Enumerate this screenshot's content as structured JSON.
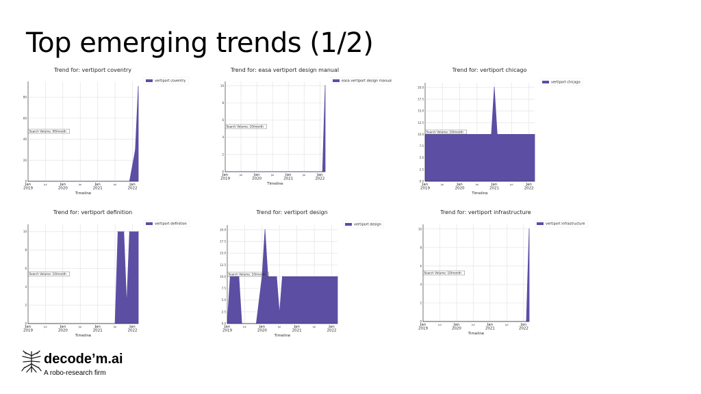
{
  "slide": {
    "title": "Top emerging trends (1/2)"
  },
  "brand": {
    "name": "decode’m.ai",
    "tagline": "A robo-research firm",
    "logo_icon": "tree-root-icon"
  },
  "colors": {
    "series": "#5b4ea3",
    "grid": "#e3e3e3",
    "axis": "#222222"
  },
  "chart_data": [
    {
      "type": "area",
      "title": "Trend for: vertiport coventry",
      "legend": "vertiport coventry",
      "legend_position": "top-right",
      "xlabel": "Timeline",
      "annotation": "Search Volume: 90/month",
      "x_start": "2019-01",
      "x_end": "2022-03",
      "x_ticks": [
        {
          "at": "2019-01",
          "label": [
            "Jan",
            "2019"
          ]
        },
        {
          "at": "2019-07",
          "label": [
            "Jul"
          ]
        },
        {
          "at": "2020-01",
          "label": [
            "Jan",
            "2020"
          ]
        },
        {
          "at": "2020-07",
          "label": [
            "Jul"
          ]
        },
        {
          "at": "2021-01",
          "label": [
            "Jan",
            "2021"
          ]
        },
        {
          "at": "2021-07",
          "label": [
            "Jul"
          ]
        },
        {
          "at": "2022-01",
          "label": [
            "Jan",
            "2022"
          ]
        }
      ],
      "y_ticks": [
        0,
        20,
        40,
        60,
        80
      ],
      "ylim": [
        0,
        95
      ],
      "grid": true,
      "points": [
        {
          "x": "2019-01",
          "y": 0
        },
        {
          "x": "2021-12",
          "y": 0
        },
        {
          "x": "2022-02",
          "y": 30
        },
        {
          "x": "2022-03",
          "y": 90
        }
      ]
    },
    {
      "type": "area",
      "title": "Trend for: easa vertiport design manual",
      "legend": "easa vertiport design manual",
      "legend_position": "top-right",
      "xlabel": "Timeline",
      "annotation": "Search Volume: 10/month",
      "x_start": "2019-01",
      "x_end": "2022-03",
      "x_ticks": [
        {
          "at": "2019-01",
          "label": [
            "Jan",
            "2019"
          ]
        },
        {
          "at": "2019-07",
          "label": [
            "Jul"
          ]
        },
        {
          "at": "2020-01",
          "label": [
            "Jan",
            "2020"
          ]
        },
        {
          "at": "2020-07",
          "label": [
            "Jul"
          ]
        },
        {
          "at": "2021-01",
          "label": [
            "Jan",
            "2021"
          ]
        },
        {
          "at": "2021-07",
          "label": [
            "Jul"
          ]
        },
        {
          "at": "2022-01",
          "label": [
            "Jan",
            "2022"
          ]
        }
      ],
      "y_ticks": [
        0,
        2,
        4,
        6,
        8,
        10
      ],
      "ylim": [
        0,
        10.5
      ],
      "grid": true,
      "points": [
        {
          "x": "2019-01",
          "y": 0
        },
        {
          "x": "2022-02",
          "y": 0
        },
        {
          "x": "2022-03",
          "y": 10
        }
      ]
    },
    {
      "type": "area",
      "title": "Trend for: vertiport chicago",
      "legend": "vertiport chicago",
      "legend_position": "top-right",
      "xlabel": "Timeline",
      "annotation": "Search Volume: 10/month",
      "x_start": "2019-01",
      "x_end": "2022-03",
      "x_ticks": [
        {
          "at": "2019-01",
          "label": [
            "Jan",
            "2019"
          ]
        },
        {
          "at": "2019-07",
          "label": [
            "Jul"
          ]
        },
        {
          "at": "2020-01",
          "label": [
            "Jan",
            "2020"
          ]
        },
        {
          "at": "2020-07",
          "label": [
            "Jul"
          ]
        },
        {
          "at": "2021-01",
          "label": [
            "Jan",
            "2021"
          ]
        },
        {
          "at": "2021-07",
          "label": [
            "Jul"
          ]
        },
        {
          "at": "2022-01",
          "label": [
            "Jan",
            "2022"
          ]
        }
      ],
      "y_ticks": [
        "0.0",
        "2.5",
        "5.0",
        "7.5",
        "10.0",
        "12.5",
        "15.0",
        "17.5",
        "20.0"
      ],
      "ylim": [
        0,
        21
      ],
      "grid": true,
      "points": [
        {
          "x": "2019-01",
          "y": 10
        },
        {
          "x": "2020-12",
          "y": 10
        },
        {
          "x": "2021-01",
          "y": 20
        },
        {
          "x": "2021-02",
          "y": 10
        },
        {
          "x": "2022-03",
          "y": 10
        }
      ]
    },
    {
      "type": "area",
      "title": "Trend for: vertiport definition",
      "legend": "vertiport definition",
      "legend_position": "top-right",
      "xlabel": "Timeline",
      "annotation": "Search Volume: 10/month",
      "x_start": "2019-01",
      "x_end": "2022-03",
      "x_ticks": [
        {
          "at": "2019-01",
          "label": [
            "Jan",
            "2019"
          ]
        },
        {
          "at": "2019-07",
          "label": [
            "Jul"
          ]
        },
        {
          "at": "2020-01",
          "label": [
            "Jan",
            "2020"
          ]
        },
        {
          "at": "2020-07",
          "label": [
            "Jul"
          ]
        },
        {
          "at": "2021-01",
          "label": [
            "Jan",
            "2021"
          ]
        },
        {
          "at": "2021-07",
          "label": [
            "Jul"
          ]
        },
        {
          "at": "2022-01",
          "label": [
            "Jan",
            "2022"
          ]
        }
      ],
      "y_ticks": [
        0,
        2,
        4,
        6,
        8,
        10
      ],
      "ylim": [
        0,
        10.8
      ],
      "grid": true,
      "points": [
        {
          "x": "2019-01",
          "y": 0
        },
        {
          "x": "2021-07",
          "y": 0
        },
        {
          "x": "2021-08",
          "y": 10
        },
        {
          "x": "2021-10",
          "y": 10
        },
        {
          "x": "2021-11",
          "y": 2
        },
        {
          "x": "2021-12",
          "y": 10
        },
        {
          "x": "2022-03",
          "y": 10
        }
      ]
    },
    {
      "type": "area",
      "title": "Trend for: vertiport design",
      "legend": "vertiport design",
      "legend_position": "top-right",
      "xlabel": "Timeline",
      "annotation": "Search Volume: 10/month",
      "x_start": "2019-01",
      "x_end": "2022-03",
      "x_ticks": [
        {
          "at": "2019-01",
          "label": [
            "Jan",
            "2019"
          ]
        },
        {
          "at": "2019-07",
          "label": [
            "Jul"
          ]
        },
        {
          "at": "2020-01",
          "label": [
            "Jan",
            "2020"
          ]
        },
        {
          "at": "2020-07",
          "label": [
            "Jul"
          ]
        },
        {
          "at": "2021-01",
          "label": [
            "Jan",
            "2021"
          ]
        },
        {
          "at": "2021-07",
          "label": [
            "Jul"
          ]
        },
        {
          "at": "2022-01",
          "label": [
            "Jan",
            "2022"
          ]
        }
      ],
      "y_ticks": [
        "0.0",
        "2.5",
        "5.0",
        "7.5",
        "10.0",
        "12.5",
        "15.0",
        "17.5",
        "20.0"
      ],
      "ylim": [
        0,
        21
      ],
      "grid": true,
      "points": [
        {
          "x": "2019-01",
          "y": 0
        },
        {
          "x": "2019-02",
          "y": 10
        },
        {
          "x": "2019-05",
          "y": 10
        },
        {
          "x": "2019-06",
          "y": 0
        },
        {
          "x": "2019-11",
          "y": 0
        },
        {
          "x": "2020-01",
          "y": 10
        },
        {
          "x": "2020-02",
          "y": 20
        },
        {
          "x": "2020-03",
          "y": 10
        },
        {
          "x": "2020-06",
          "y": 10
        },
        {
          "x": "2020-07",
          "y": 2
        },
        {
          "x": "2020-08",
          "y": 10
        },
        {
          "x": "2022-03",
          "y": 10
        }
      ]
    },
    {
      "type": "area",
      "title": "Trend for: vertiport infrastructure",
      "legend": "vertiport infrastructure",
      "legend_position": "top-right",
      "xlabel": "Timeline",
      "annotation": "Search Volume: 10/month",
      "x_start": "2019-01",
      "x_end": "2022-03",
      "x_ticks": [
        {
          "at": "2019-01",
          "label": [
            "Jan",
            "2019"
          ]
        },
        {
          "at": "2019-07",
          "label": [
            "Jul"
          ]
        },
        {
          "at": "2020-01",
          "label": [
            "Jan",
            "2020"
          ]
        },
        {
          "at": "2020-07",
          "label": [
            "Jul"
          ]
        },
        {
          "at": "2021-01",
          "label": [
            "Jan",
            "2021"
          ]
        },
        {
          "at": "2021-07",
          "label": [
            "Jul"
          ]
        },
        {
          "at": "2022-01",
          "label": [
            "Jan",
            "2022"
          ]
        }
      ],
      "y_ticks": [
        0,
        2,
        4,
        6,
        8,
        10
      ],
      "ylim": [
        0,
        10.5
      ],
      "grid": true,
      "points": [
        {
          "x": "2019-01",
          "y": 0
        },
        {
          "x": "2022-02",
          "y": 0
        },
        {
          "x": "2022-03",
          "y": 10
        }
      ]
    }
  ]
}
